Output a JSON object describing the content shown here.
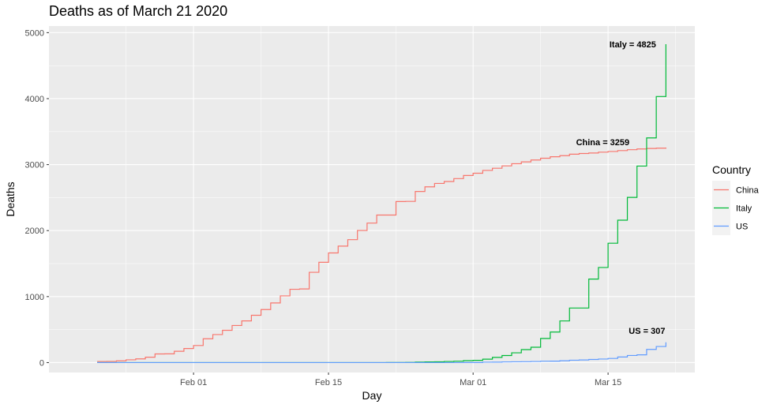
{
  "chart_data": {
    "type": "line",
    "step": true,
    "title": "Deaths as of March 21 2020",
    "xlabel": "Day",
    "ylabel": "Deaths",
    "x_is_date": true,
    "xlim": [
      "2020-01-17",
      "2020-03-24"
    ],
    "ylim": [
      -150,
      5100
    ],
    "yticks": [
      0,
      1000,
      2000,
      3000,
      4000,
      5000
    ],
    "xticks": [
      {
        "date": "2020-02-01",
        "label": "Feb 01"
      },
      {
        "date": "2020-02-15",
        "label": "Feb 15"
      },
      {
        "date": "2020-03-01",
        "label": "Mar 01"
      },
      {
        "date": "2020-03-15",
        "label": "Mar 15"
      }
    ],
    "background": "#ebebeb",
    "grid": true,
    "legend": {
      "title": "Country",
      "position": "right"
    },
    "dates": [
      "2020-01-22",
      "2020-01-23",
      "2020-01-24",
      "2020-01-25",
      "2020-01-26",
      "2020-01-27",
      "2020-01-28",
      "2020-01-29",
      "2020-01-30",
      "2020-01-31",
      "2020-02-01",
      "2020-02-02",
      "2020-02-03",
      "2020-02-04",
      "2020-02-05",
      "2020-02-06",
      "2020-02-07",
      "2020-02-08",
      "2020-02-09",
      "2020-02-10",
      "2020-02-11",
      "2020-02-12",
      "2020-02-13",
      "2020-02-14",
      "2020-02-15",
      "2020-02-16",
      "2020-02-17",
      "2020-02-18",
      "2020-02-19",
      "2020-02-20",
      "2020-02-21",
      "2020-02-22",
      "2020-02-23",
      "2020-02-24",
      "2020-02-25",
      "2020-02-26",
      "2020-02-27",
      "2020-02-28",
      "2020-02-29",
      "2020-03-01",
      "2020-03-02",
      "2020-03-03",
      "2020-03-04",
      "2020-03-05",
      "2020-03-06",
      "2020-03-07",
      "2020-03-08",
      "2020-03-09",
      "2020-03-10",
      "2020-03-11",
      "2020-03-12",
      "2020-03-13",
      "2020-03-14",
      "2020-03-15",
      "2020-03-16",
      "2020-03-17",
      "2020-03-18",
      "2020-03-19",
      "2020-03-20",
      "2020-03-21"
    ],
    "series": [
      {
        "name": "China",
        "color": "#F8766D",
        "values": [
          17,
          18,
          26,
          42,
          56,
          82,
          131,
          133,
          171,
          213,
          259,
          361,
          425,
          490,
          562,
          632,
          717,
          804,
          904,
          1011,
          1111,
          1116,
          1368,
          1520,
          1662,
          1765,
          1863,
          2002,
          2114,
          2236,
          2236,
          2441,
          2443,
          2593,
          2663,
          2715,
          2744,
          2788,
          2835,
          2870,
          2912,
          2945,
          2981,
          3013,
          3042,
          3070,
          3097,
          3119,
          3136,
          3158,
          3169,
          3176,
          3189,
          3199,
          3213,
          3226,
          3237,
          3245,
          3249,
          3259
        ],
        "label": "China = 3259"
      },
      {
        "name": "Italy",
        "color": "#00BA38",
        "values": [
          0,
          0,
          0,
          0,
          0,
          0,
          0,
          0,
          0,
          0,
          0,
          0,
          0,
          0,
          0,
          0,
          0,
          0,
          0,
          0,
          0,
          0,
          0,
          0,
          0,
          0,
          0,
          0,
          0,
          0,
          1,
          2,
          3,
          7,
          10,
          12,
          17,
          21,
          29,
          34,
          52,
          79,
          107,
          148,
          197,
          233,
          366,
          463,
          631,
          827,
          827,
          1266,
          1441,
          1809,
          2158,
          2503,
          2978,
          3405,
          4032,
          4825
        ],
        "label": "Italy = 4825"
      },
      {
        "name": "US",
        "color": "#619CFF",
        "values": [
          0,
          0,
          0,
          0,
          0,
          0,
          0,
          0,
          0,
          0,
          0,
          0,
          0,
          0,
          0,
          0,
          0,
          0,
          0,
          0,
          0,
          0,
          0,
          0,
          0,
          0,
          0,
          0,
          0,
          0,
          0,
          0,
          0,
          0,
          0,
          0,
          0,
          0,
          1,
          1,
          6,
          7,
          11,
          12,
          14,
          17,
          21,
          22,
          28,
          36,
          40,
          47,
          54,
          63,
          85,
          108,
          118,
          200,
          244,
          307
        ],
        "label": "US = 307"
      }
    ]
  }
}
